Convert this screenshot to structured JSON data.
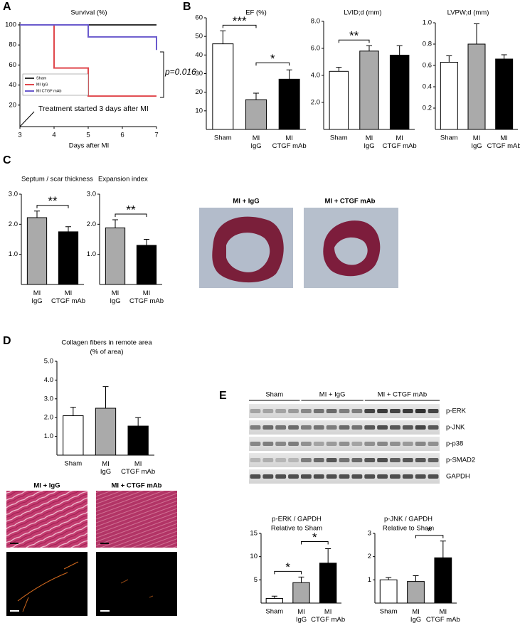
{
  "panel_labels": [
    "A",
    "B",
    "C",
    "D",
    "E"
  ],
  "images": {
    "C": [
      "MI + IgG",
      "MI + CTGF mAb"
    ],
    "D": [
      "MI + IgG",
      "MI + CTGF mAb"
    ]
  },
  "blot": {
    "groups": [
      "Sham",
      "MI + IgG",
      "MI + CTGF mAb"
    ],
    "rows": [
      "p-ERK",
      "p-JNK",
      "p-p38",
      "p-SMAD2",
      "GAPDH"
    ]
  },
  "chart_data": [
    {
      "type": "line",
      "title": "Survival (%)",
      "x_label": "Days after MI",
      "x": [
        3,
        4,
        4,
        5,
        5,
        7,
        7
      ],
      "xlim": [
        3,
        7
      ],
      "xticks": [
        3,
        4,
        5,
        6,
        7
      ],
      "ylim": [
        0,
        100
      ],
      "yticks": [
        20,
        40,
        60,
        80,
        100
      ],
      "series": [
        {
          "name": "Sham",
          "color": "#333333",
          "values": [
            100,
            100,
            100,
            100,
            100,
            100,
            100
          ]
        },
        {
          "name": "MI IgG",
          "color": "#e0474c",
          "values": [
            100,
            100,
            57,
            57,
            29,
            29,
            29
          ]
        },
        {
          "name": "MI CTGF mAb",
          "color": "#6a5acd",
          "values": [
            100,
            100,
            100,
            100,
            88,
            88,
            75
          ]
        }
      ],
      "annotations": [
        "Treatment started 3 days after MI",
        "p=0.016"
      ]
    },
    {
      "type": "bar",
      "title": "EF (%)",
      "categories": [
        "Sham",
        "MI IgG",
        "MI CTGF mAb"
      ],
      "values": [
        46,
        16,
        27
      ],
      "errors": [
        7,
        3.5,
        5
      ],
      "colors": [
        "#ffffff",
        "#aaaaaa",
        "#000000"
      ],
      "ylim": [
        0,
        60
      ],
      "yticks": [
        10,
        20,
        30,
        40,
        50,
        60
      ],
      "significance": [
        {
          "text": "***",
          "between": [
            "Sham",
            "MI IgG"
          ]
        },
        {
          "text": "*",
          "between": [
            "MI IgG",
            "MI CTGF mAb"
          ]
        }
      ]
    },
    {
      "type": "bar",
      "title": "LVID;d (mm)",
      "categories": [
        "Sham",
        "MI IgG",
        "MI CTGF mAb"
      ],
      "values": [
        4.3,
        5.8,
        5.5
      ],
      "errors": [
        0.3,
        0.4,
        0.7
      ],
      "colors": [
        "#ffffff",
        "#aaaaaa",
        "#000000"
      ],
      "ylim": [
        0,
        8
      ],
      "yticks": [
        {
          "value": 2,
          "label": "2.0"
        },
        {
          "value": 4,
          "label": "4.0"
        },
        {
          "value": 6,
          "label": "6.0"
        },
        {
          "value": 8,
          "label": "8.0"
        }
      ],
      "significance": [
        {
          "text": "**",
          "between": [
            "Sham",
            "MI IgG"
          ]
        }
      ]
    },
    {
      "type": "bar",
      "title": "LVPW;d (mm)",
      "categories": [
        "Sham",
        "MI IgG",
        "MI CTGF mAb"
      ],
      "values": [
        0.63,
        0.8,
        0.66
      ],
      "errors": [
        0.06,
        0.19,
        0.04
      ],
      "colors": [
        "#ffffff",
        "#aaaaaa",
        "#000000"
      ],
      "ylim": [
        0,
        1
      ],
      "yticks": [
        0.2,
        0.4,
        0.6,
        0.8,
        {
          "value": 1,
          "label": "1.0"
        }
      ]
    },
    {
      "type": "bar",
      "title": "Septum / scar thickness",
      "categories": [
        "MI IgG",
        "MI CTGF mAb"
      ],
      "values": [
        2.22,
        1.75
      ],
      "errors": [
        0.22,
        0.17
      ],
      "colors": [
        "#aaaaaa",
        "#000000"
      ],
      "ylim": [
        0,
        3
      ],
      "yticks": [
        {
          "value": 1,
          "label": "1.0"
        },
        {
          "value": 2,
          "label": "2.0"
        },
        {
          "value": 3,
          "label": "3.0"
        }
      ],
      "significance": [
        {
          "text": "**",
          "between": [
            "MI IgG",
            "MI CTGF mAb"
          ]
        }
      ]
    },
    {
      "type": "bar",
      "title": "Expansion index",
      "categories": [
        "MI IgG",
        "MI CTGF mAb"
      ],
      "values": [
        1.88,
        1.3
      ],
      "errors": [
        0.27,
        0.2
      ],
      "colors": [
        "#aaaaaa",
        "#000000"
      ],
      "ylim": [
        0,
        3
      ],
      "yticks": [
        {
          "value": 1,
          "label": "1.0"
        },
        {
          "value": 2,
          "label": "2.0"
        },
        {
          "value": 3,
          "label": "3.0"
        }
      ],
      "significance": [
        {
          "text": "**",
          "between": [
            "MI IgG",
            "MI CTGF mAb"
          ]
        }
      ]
    },
    {
      "type": "bar",
      "title": "Collagen fibers in remote area",
      "subtitle": "(% of area)",
      "categories": [
        "Sham",
        "MI IgG",
        "MI CTGF mAb"
      ],
      "values": [
        2.1,
        2.5,
        1.55
      ],
      "errors": [
        0.45,
        1.15,
        0.45
      ],
      "colors": [
        "#ffffff",
        "#aaaaaa",
        "#000000"
      ],
      "ylim": [
        0,
        5
      ],
      "yticks": [
        {
          "value": 1,
          "label": "1.0"
        },
        {
          "value": 2,
          "label": "2.0"
        },
        {
          "value": 3,
          "label": "3.0"
        },
        {
          "value": 4,
          "label": "4.0"
        },
        {
          "value": 5,
          "label": "5.0"
        }
      ]
    },
    {
      "type": "bar",
      "title": "p-ERK / GAPDH",
      "subtitle": "Relative to Sham",
      "categories": [
        "Sham",
        "MI IgG",
        "MI CTGF mAb"
      ],
      "values": [
        1,
        4.4,
        8.6
      ],
      "errors": [
        0.5,
        1.2,
        3.1
      ],
      "colors": [
        "#ffffff",
        "#aaaaaa",
        "#000000"
      ],
      "ylim": [
        0,
        15
      ],
      "yticks": [
        5,
        10,
        15
      ],
      "significance": [
        {
          "text": "*",
          "between": [
            "Sham",
            "MI IgG"
          ]
        },
        {
          "text": "*",
          "between": [
            "MI IgG",
            "MI CTGF mAb"
          ]
        }
      ]
    },
    {
      "type": "bar",
      "title": "p-JNK / GAPDH",
      "subtitle": "Relative to Sham",
      "categories": [
        "Sham",
        "MI IgG",
        "MI CTGF mAb"
      ],
      "values": [
        1,
        0.93,
        1.95
      ],
      "errors": [
        0.1,
        0.25,
        0.72
      ],
      "colors": [
        "#ffffff",
        "#aaaaaa",
        "#000000"
      ],
      "ylim": [
        0,
        3
      ],
      "yticks": [
        1,
        2,
        3
      ],
      "significance": [
        {
          "text": "*",
          "between": [
            "MI IgG",
            "MI CTGF mAb"
          ]
        }
      ]
    }
  ]
}
